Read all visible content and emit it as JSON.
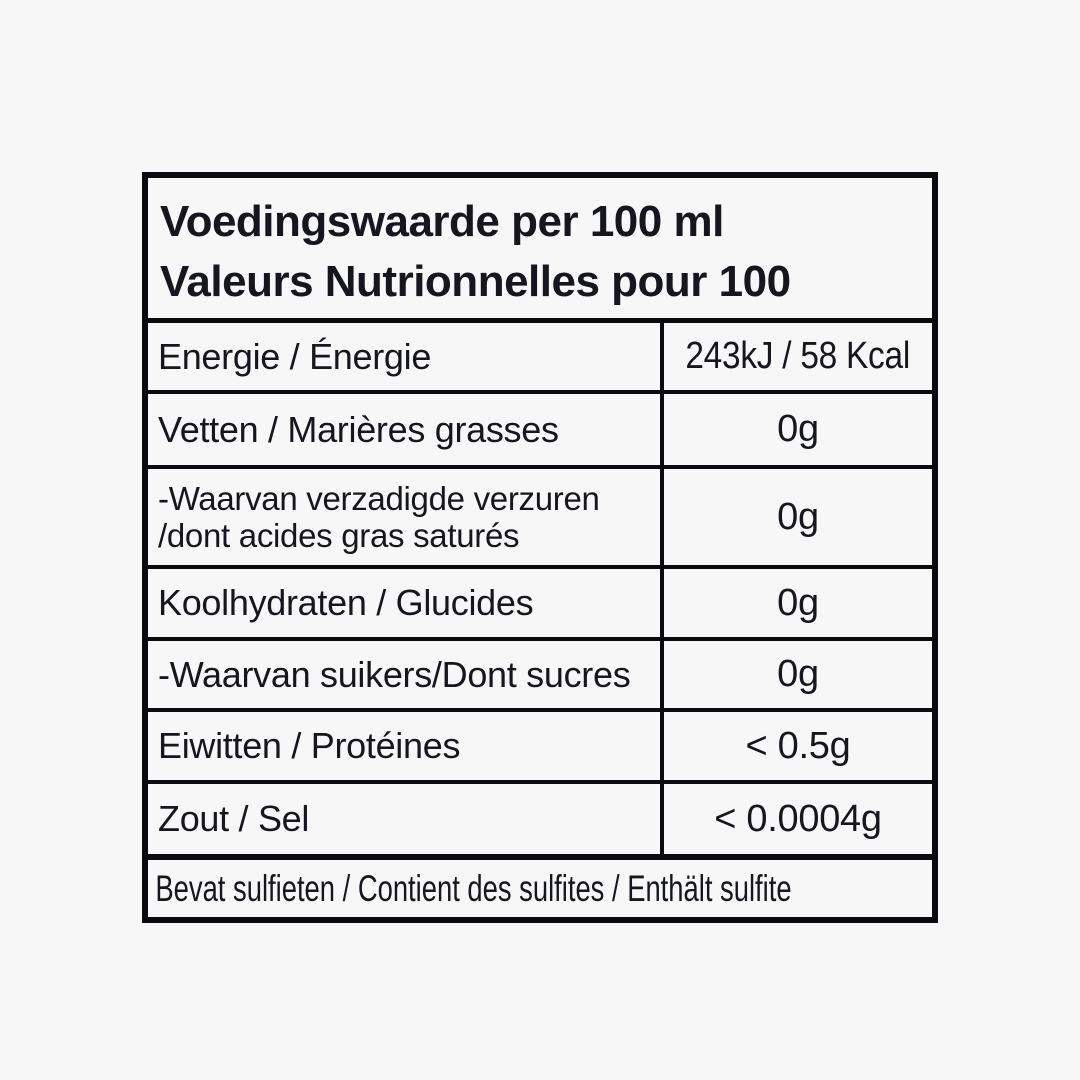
{
  "colors": {
    "background": "#f7f7f8",
    "text": "#15161f",
    "border": "#0a0b10"
  },
  "header": {
    "line1": "Voedingswaarde per 100 ml",
    "line2": "Valeurs Nutrionnelles pour 100"
  },
  "rows": [
    {
      "label": "Energie / Énergie",
      "value": "243kJ / 58 Kcal"
    },
    {
      "label": "Vetten / Marières grasses",
      "value": "0g"
    },
    {
      "label_line1": "-Waarvan verzadigde verzuren",
      "label_line2": "/dont acides gras saturés",
      "value": "0g"
    },
    {
      "label": "Koolhydraten / Glucides",
      "value": "0g"
    },
    {
      "label": "-Waarvan suikers/Dont sucres",
      "value": "0g"
    },
    {
      "label": "Eiwitten / Protéines",
      "value": "< 0.5g"
    },
    {
      "label": "Zout / Sel",
      "value": "< 0.0004g"
    }
  ],
  "footer": {
    "text": "Bevat sulfieten / Contient des sulfites / Enthält sulfite"
  }
}
